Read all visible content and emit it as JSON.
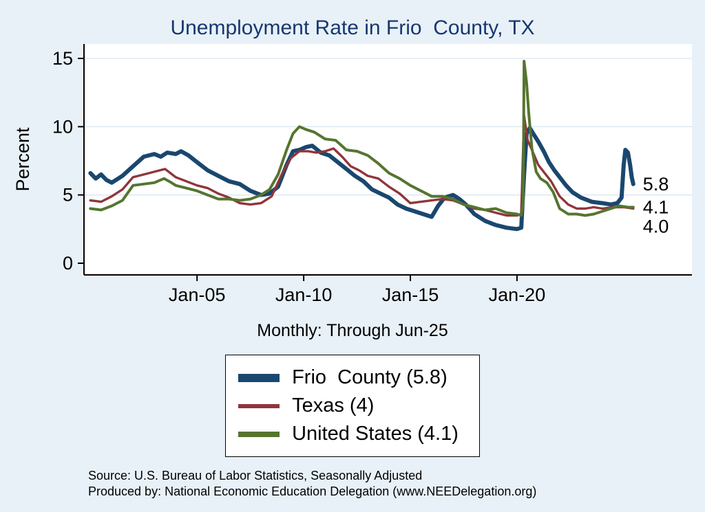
{
  "title": "Unemployment Rate in Frio  County, TX",
  "subtitle": "Monthly: Through Jun-25",
  "y_axis_label": "Percent",
  "source": {
    "line1": "Source: U.S. Bureau of Labor Statistics, Seasonally Adjusted",
    "line2": "Produced by: National Economic Education Delegation (www.NEEDelegation.org)"
  },
  "legend": [
    {
      "label": "Frio  County (5.8)",
      "color": "#1A476F"
    },
    {
      "label": "Texas (4)",
      "color": "#90353B"
    },
    {
      "label": "United States (4.1)",
      "color": "#55752F"
    }
  ],
  "colors": {
    "background": "#e8f1f8",
    "plot_background": "#ffffff",
    "title": "#17386e",
    "gridline": "#d9e6f0",
    "axis": "#000000"
  },
  "chart_data": {
    "type": "line",
    "title": "Unemployment Rate in Frio  County, TX",
    "xlabel": "",
    "ylabel": "Percent",
    "ylim": [
      0,
      15
    ],
    "x_domain": [
      1999.7,
      2028.2
    ],
    "y_ticks": [
      0,
      5,
      10,
      15
    ],
    "x_ticks": [
      {
        "year": 2005,
        "label": "Jan-05"
      },
      {
        "year": 2010,
        "label": "Jan-10"
      },
      {
        "year": 2015,
        "label": "Jan-15"
      },
      {
        "year": 2020,
        "label": "Jan-20"
      }
    ],
    "grid": true,
    "legend_position": "bottom",
    "frequency_note": "Monthly: Through Jun-25",
    "series": [
      {
        "name": "Frio County",
        "color": "#1A476F",
        "end_label": "5.8",
        "latest_value": 5.8,
        "points": [
          [
            2000.0,
            6.6
          ],
          [
            2000.25,
            6.2
          ],
          [
            2000.5,
            6.5
          ],
          [
            2000.75,
            6.1
          ],
          [
            2001.0,
            5.9
          ],
          [
            2001.5,
            6.4
          ],
          [
            2002.0,
            7.1
          ],
          [
            2002.5,
            7.8
          ],
          [
            2003.0,
            8.0
          ],
          [
            2003.3,
            7.8
          ],
          [
            2003.6,
            8.1
          ],
          [
            2004.0,
            8.0
          ],
          [
            2004.25,
            8.2
          ],
          [
            2004.6,
            7.9
          ],
          [
            2005.0,
            7.4
          ],
          [
            2005.5,
            6.8
          ],
          [
            2006.0,
            6.4
          ],
          [
            2006.5,
            6.0
          ],
          [
            2007.0,
            5.8
          ],
          [
            2007.5,
            5.3
          ],
          [
            2008.0,
            5.0
          ],
          [
            2008.4,
            5.1
          ],
          [
            2008.8,
            5.6
          ],
          [
            2009.2,
            7.2
          ],
          [
            2009.5,
            8.2
          ],
          [
            2009.8,
            8.3
          ],
          [
            2010.1,
            8.5
          ],
          [
            2010.4,
            8.6
          ],
          [
            2010.8,
            8.1
          ],
          [
            2011.2,
            7.9
          ],
          [
            2011.6,
            7.4
          ],
          [
            2012.0,
            6.9
          ],
          [
            2012.4,
            6.4
          ],
          [
            2012.8,
            6.0
          ],
          [
            2013.2,
            5.4
          ],
          [
            2013.6,
            5.1
          ],
          [
            2014.0,
            4.8
          ],
          [
            2014.4,
            4.3
          ],
          [
            2014.8,
            4.0
          ],
          [
            2015.2,
            3.8
          ],
          [
            2015.6,
            3.6
          ],
          [
            2016.0,
            3.4
          ],
          [
            2016.3,
            4.2
          ],
          [
            2016.6,
            4.8
          ],
          [
            2017.0,
            5.0
          ],
          [
            2017.3,
            4.7
          ],
          [
            2017.6,
            4.3
          ],
          [
            2018.0,
            3.6
          ],
          [
            2018.5,
            3.1
          ],
          [
            2019.0,
            2.8
          ],
          [
            2019.5,
            2.6
          ],
          [
            2020.0,
            2.5
          ],
          [
            2020.2,
            2.6
          ],
          [
            2020.33,
            6.5
          ],
          [
            2020.45,
            9.5
          ],
          [
            2020.6,
            9.9
          ],
          [
            2020.8,
            9.4
          ],
          [
            2021.0,
            8.9
          ],
          [
            2021.25,
            8.2
          ],
          [
            2021.5,
            7.4
          ],
          [
            2021.75,
            6.8
          ],
          [
            2022.0,
            6.3
          ],
          [
            2022.3,
            5.7
          ],
          [
            2022.6,
            5.2
          ],
          [
            2023.0,
            4.8
          ],
          [
            2023.5,
            4.5
          ],
          [
            2024.0,
            4.4
          ],
          [
            2024.4,
            4.3
          ],
          [
            2024.7,
            4.4
          ],
          [
            2024.9,
            4.8
          ],
          [
            2025.0,
            7.2
          ],
          [
            2025.08,
            8.3
          ],
          [
            2025.2,
            8.1
          ],
          [
            2025.3,
            7.2
          ],
          [
            2025.38,
            6.3
          ],
          [
            2025.45,
            5.8
          ]
        ]
      },
      {
        "name": "Texas",
        "color": "#90353B",
        "end_label": "4.0",
        "latest_value": 4.0,
        "points": [
          [
            2000.0,
            4.6
          ],
          [
            2000.5,
            4.5
          ],
          [
            2001.0,
            4.9
          ],
          [
            2001.5,
            5.4
          ],
          [
            2002.0,
            6.3
          ],
          [
            2002.5,
            6.5
          ],
          [
            2003.0,
            6.7
          ],
          [
            2003.5,
            6.9
          ],
          [
            2004.0,
            6.3
          ],
          [
            2004.5,
            6.0
          ],
          [
            2005.0,
            5.7
          ],
          [
            2005.5,
            5.5
          ],
          [
            2006.0,
            5.1
          ],
          [
            2006.5,
            4.8
          ],
          [
            2007.0,
            4.4
          ],
          [
            2007.5,
            4.3
          ],
          [
            2008.0,
            4.4
          ],
          [
            2008.5,
            4.9
          ],
          [
            2009.0,
            6.6
          ],
          [
            2009.4,
            7.7
          ],
          [
            2009.8,
            8.2
          ],
          [
            2010.2,
            8.2
          ],
          [
            2010.6,
            8.1
          ],
          [
            2011.0,
            8.2
          ],
          [
            2011.4,
            8.4
          ],
          [
            2011.8,
            7.8
          ],
          [
            2012.2,
            7.1
          ],
          [
            2012.6,
            6.8
          ],
          [
            2013.0,
            6.4
          ],
          [
            2013.5,
            6.2
          ],
          [
            2014.0,
            5.6
          ],
          [
            2014.5,
            5.1
          ],
          [
            2015.0,
            4.4
          ],
          [
            2015.5,
            4.5
          ],
          [
            2016.0,
            4.6
          ],
          [
            2016.5,
            4.7
          ],
          [
            2017.0,
            4.6
          ],
          [
            2017.5,
            4.3
          ],
          [
            2018.0,
            4.0
          ],
          [
            2018.5,
            3.9
          ],
          [
            2019.0,
            3.7
          ],
          [
            2019.5,
            3.5
          ],
          [
            2020.0,
            3.5
          ],
          [
            2020.2,
            3.6
          ],
          [
            2020.33,
            10.8
          ],
          [
            2020.5,
            9.0
          ],
          [
            2020.7,
            8.3
          ],
          [
            2021.0,
            7.2
          ],
          [
            2021.3,
            6.6
          ],
          [
            2021.6,
            6.0
          ],
          [
            2022.0,
            4.9
          ],
          [
            2022.4,
            4.3
          ],
          [
            2022.8,
            4.0
          ],
          [
            2023.2,
            4.0
          ],
          [
            2023.6,
            4.1
          ],
          [
            2024.0,
            4.0
          ],
          [
            2024.5,
            4.1
          ],
          [
            2025.0,
            4.1
          ],
          [
            2025.45,
            4.0
          ]
        ]
      },
      {
        "name": "United States",
        "color": "#55752F",
        "end_label": "4.1",
        "latest_value": 4.1,
        "points": [
          [
            2000.0,
            4.0
          ],
          [
            2000.5,
            3.9
          ],
          [
            2001.0,
            4.2
          ],
          [
            2001.5,
            4.6
          ],
          [
            2002.0,
            5.7
          ],
          [
            2002.5,
            5.8
          ],
          [
            2003.0,
            5.9
          ],
          [
            2003.45,
            6.2
          ],
          [
            2003.8,
            5.9
          ],
          [
            2004.0,
            5.7
          ],
          [
            2004.5,
            5.5
          ],
          [
            2005.0,
            5.3
          ],
          [
            2005.5,
            5.0
          ],
          [
            2006.0,
            4.7
          ],
          [
            2006.5,
            4.7
          ],
          [
            2007.0,
            4.6
          ],
          [
            2007.5,
            4.7
          ],
          [
            2008.0,
            5.0
          ],
          [
            2008.4,
            5.4
          ],
          [
            2008.8,
            6.5
          ],
          [
            2009.2,
            8.3
          ],
          [
            2009.5,
            9.5
          ],
          [
            2009.8,
            10.0
          ],
          [
            2010.1,
            9.8
          ],
          [
            2010.5,
            9.6
          ],
          [
            2011.0,
            9.1
          ],
          [
            2011.5,
            9.0
          ],
          [
            2012.0,
            8.3
          ],
          [
            2012.5,
            8.2
          ],
          [
            2013.0,
            7.9
          ],
          [
            2013.5,
            7.3
          ],
          [
            2014.0,
            6.6
          ],
          [
            2014.5,
            6.2
          ],
          [
            2015.0,
            5.7
          ],
          [
            2015.5,
            5.3
          ],
          [
            2016.0,
            4.9
          ],
          [
            2016.5,
            4.9
          ],
          [
            2017.0,
            4.7
          ],
          [
            2017.5,
            4.3
          ],
          [
            2018.0,
            4.1
          ],
          [
            2018.5,
            3.9
          ],
          [
            2019.0,
            4.0
          ],
          [
            2019.5,
            3.7
          ],
          [
            2020.0,
            3.6
          ],
          [
            2020.2,
            3.5
          ],
          [
            2020.29,
            4.4
          ],
          [
            2020.33,
            14.8
          ],
          [
            2020.45,
            13.2
          ],
          [
            2020.55,
            11.0
          ],
          [
            2020.7,
            8.4
          ],
          [
            2020.9,
            6.7
          ],
          [
            2021.1,
            6.2
          ],
          [
            2021.4,
            5.9
          ],
          [
            2021.7,
            5.2
          ],
          [
            2022.0,
            4.0
          ],
          [
            2022.4,
            3.6
          ],
          [
            2022.8,
            3.6
          ],
          [
            2023.2,
            3.5
          ],
          [
            2023.6,
            3.6
          ],
          [
            2024.0,
            3.8
          ],
          [
            2024.4,
            4.0
          ],
          [
            2024.8,
            4.2
          ],
          [
            2025.2,
            4.1
          ],
          [
            2025.45,
            4.1
          ]
        ]
      }
    ]
  }
}
